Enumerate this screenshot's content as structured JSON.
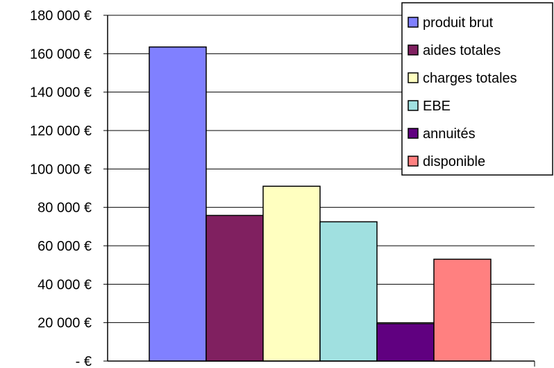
{
  "chart_data": {
    "type": "bar",
    "title": "",
    "xlabel": "",
    "ylabel": "",
    "categories": [
      ""
    ],
    "series": [
      {
        "name": "produit brut",
        "values": [
          163500
        ],
        "color": "#8080ff"
      },
      {
        "name": "aides totales",
        "values": [
          75800
        ],
        "color": "#802060"
      },
      {
        "name": "charges totales",
        "values": [
          91000
        ],
        "color": "#ffffc0"
      },
      {
        "name": "EBE",
        "values": [
          72500
        ],
        "color": "#a0e0e0"
      },
      {
        "name": "annuités",
        "values": [
          19500
        ],
        "color": "#600080"
      },
      {
        "name": "disponible",
        "values": [
          53000
        ],
        "color": "#ff8080"
      }
    ],
    "ylim": [
      0,
      180000
    ],
    "yticks": [
      {
        "value": 0,
        "label": "-     €"
      },
      {
        "value": 20000,
        "label": "20 000 €"
      },
      {
        "value": 40000,
        "label": "40 000 €"
      },
      {
        "value": 60000,
        "label": "60 000 €"
      },
      {
        "value": 80000,
        "label": "80 000 €"
      },
      {
        "value": 100000,
        "label": "100 000 €"
      },
      {
        "value": 120000,
        "label": "120 000 €"
      },
      {
        "value": 140000,
        "label": "140 000 €"
      },
      {
        "value": 160000,
        "label": "160 000 €"
      },
      {
        "value": 180000,
        "label": "180 000 €"
      }
    ],
    "grid": true,
    "legend_position": "top-right"
  }
}
